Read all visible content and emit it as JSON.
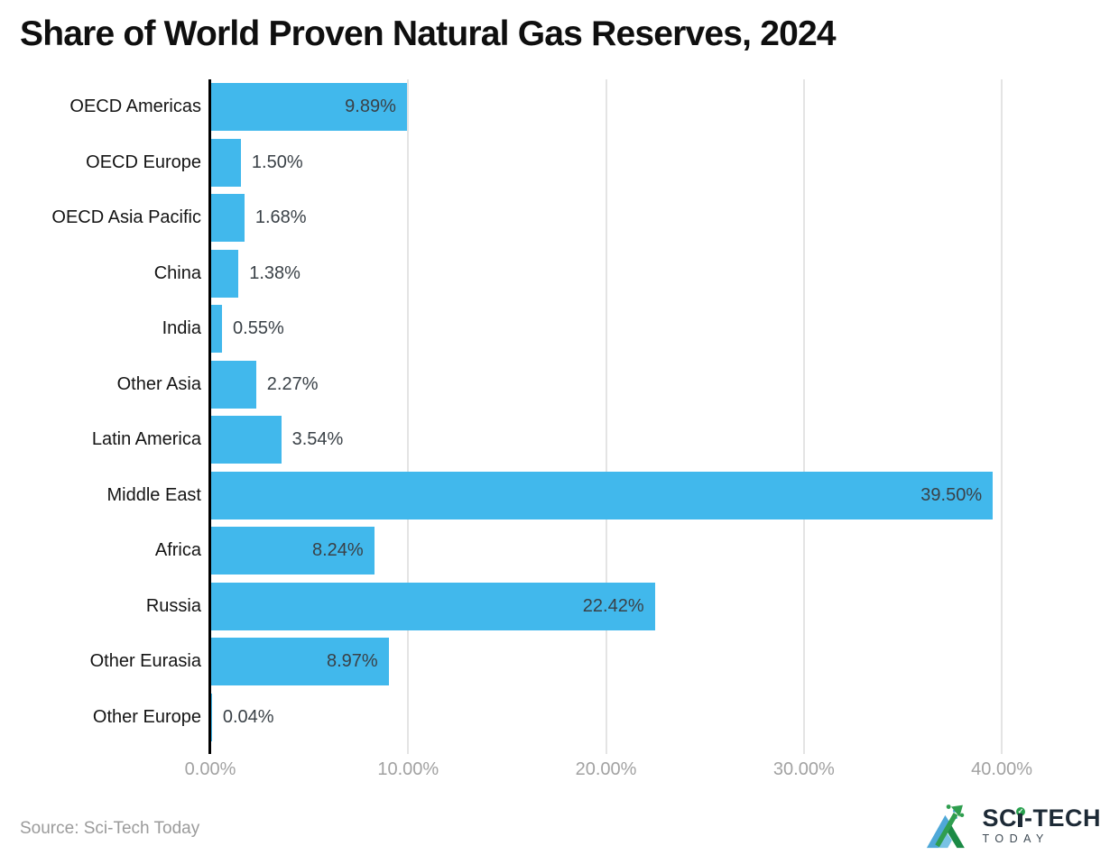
{
  "page": {
    "title": "Share of World Proven Natural Gas Reserves, 2024",
    "source": "Source: Sci-Tech Today"
  },
  "logo": {
    "part1": "SC",
    "part2": "-TECH",
    "secondary": "TODAY",
    "check": "✓"
  },
  "chart_data": {
    "type": "bar",
    "orientation": "horizontal",
    "title": "Share of World Proven Natural Gas Reserves, 2024",
    "categories": [
      "OECD Americas",
      "OECD Europe",
      "OECD Asia Pacific",
      "China",
      "India",
      "Other Asia",
      "Latin America",
      "Middle East",
      "Africa",
      "Russia",
      "Other Eurasia",
      "Other Europe"
    ],
    "values": [
      9.89,
      1.5,
      1.68,
      1.38,
      0.55,
      2.27,
      3.54,
      39.5,
      8.24,
      22.42,
      8.97,
      0.04
    ],
    "value_labels": [
      "9.89%",
      "1.50%",
      "1.68%",
      "1.38%",
      "0.55%",
      "2.27%",
      "3.54%",
      "39.50%",
      "8.24%",
      "22.42%",
      "8.97%",
      "0.04%"
    ],
    "xlabel": "",
    "ylabel": "",
    "x_tick_labels": [
      "0.00%",
      "10.00%",
      "20.00%",
      "30.00%",
      "40.00%"
    ],
    "x_tick_values": [
      0,
      10,
      20,
      30,
      40
    ],
    "xlim": [
      0,
      44.1
    ],
    "grid": true,
    "legend": false,
    "bar_color": "#41b8ec",
    "axis_color": "#000000",
    "gridline_color": "#e4e4e4",
    "tick_label_color": "#a2a2a2",
    "category_label_color": "#141414",
    "value_label_color": "#3a4147"
  }
}
